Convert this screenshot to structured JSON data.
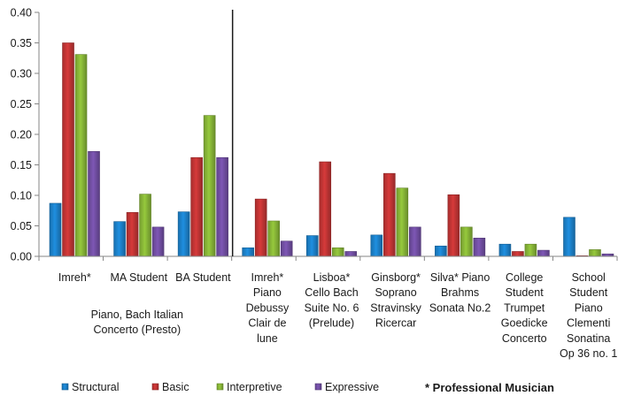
{
  "chart_data": {
    "type": "bar",
    "ylim": [
      0,
      0.4
    ],
    "y_ticks": [
      "0.00",
      "0.05",
      "0.10",
      "0.15",
      "0.20",
      "0.25",
      "0.30",
      "0.35",
      "0.40"
    ],
    "grid": false,
    "legend_position": "bottom",
    "categories": [
      [
        "Imreh*"
      ],
      [
        "MA Student"
      ],
      [
        "BA Student"
      ],
      [
        "Imreh*",
        "Piano",
        "Debussy",
        "Clair de",
        "lune"
      ],
      [
        "Lisboa*",
        "Cello Bach",
        "Suite No. 6",
        "(Prelude)"
      ],
      [
        "Ginsborg*",
        "Soprano",
        "Stravinsky",
        "Ricercar"
      ],
      [
        "Silva* Piano",
        "Brahms",
        "Sonata No.2"
      ],
      [
        "College",
        "Student",
        "Trumpet",
        "Goedicke",
        "Concerto"
      ],
      [
        "School",
        "Student",
        "Piano",
        "Clementi",
        "Sonatina",
        "Op 36 no. 1"
      ]
    ],
    "group_label": [
      "Piano, Bach Italian",
      "Concerto (Presto)"
    ],
    "series": [
      {
        "name": "Structural",
        "color": "#1f8fe0",
        "values": [
          0.087,
          0.057,
          0.073,
          0.014,
          0.034,
          0.035,
          0.017,
          0.02,
          0.064
        ]
      },
      {
        "name": "Basic",
        "color": "#d63a3a",
        "values": [
          0.35,
          0.072,
          0.162,
          0.094,
          0.155,
          0.136,
          0.101,
          0.008,
          0.001
        ]
      },
      {
        "name": "Interpretive",
        "color": "#96c93d",
        "values": [
          0.331,
          0.102,
          0.231,
          0.058,
          0.014,
          0.112,
          0.048,
          0.02,
          0.011
        ]
      },
      {
        "name": "Expressive",
        "color": "#7e57b5",
        "values": [
          0.172,
          0.048,
          0.162,
          0.025,
          0.008,
          0.048,
          0.03,
          0.01,
          0.004
        ]
      }
    ],
    "note": "* Professional Musician"
  }
}
